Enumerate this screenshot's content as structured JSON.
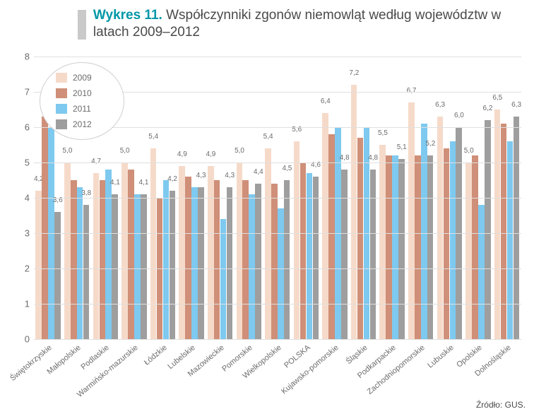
{
  "title_prefix": "Wykres 11.",
  "title_rest": " Współczynniki zgonów niemowląt według województw w latach 2009–2012",
  "title_prefix_color": "#0097a7",
  "source_text": "Źródło: GUS.",
  "chart": {
    "type": "bar",
    "ylim": [
      0,
      8
    ],
    "ytick_step": 1,
    "gridline_color": "#e0e0e0",
    "background_color": "#ffffff",
    "label_fontsize": 10,
    "axis_fontsize": 13,
    "xaxis_fontsize": 11,
    "bar_width_ratio": 0.22,
    "group_gap_ratio": 0.12,
    "series": [
      {
        "name": "2009",
        "color": "#f6dac9"
      },
      {
        "name": "2010",
        "color": "#cf8f78"
      },
      {
        "name": "2011",
        "color": "#7ec9ef"
      },
      {
        "name": "2012",
        "color": "#9e9e9e"
      }
    ],
    "categories": [
      "Świętokrzyskie",
      "Małopolskie",
      "Podlaskie",
      "Warmińsko-mazurskie",
      "Łódzkie",
      "Lubelskie",
      "Mazowieckie",
      "Pomorskie",
      "Wielkopolskie",
      "POLSKA",
      "Kujawsko-pomorskie",
      "Śląskie",
      "Podkarpackie",
      "Zachodniopomorskie",
      "Lubuskie",
      "Opolskie",
      "Dolnośląskie"
    ],
    "values": [
      [
        4.2,
        6.3,
        6.0,
        3.6
      ],
      [
        5.0,
        4.5,
        4.3,
        3.8
      ],
      [
        4.7,
        4.5,
        4.8,
        4.1
      ],
      [
        5.0,
        4.8,
        4.1,
        4.1
      ],
      [
        5.4,
        4.0,
        4.5,
        4.2
      ],
      [
        4.9,
        4.6,
        4.3,
        4.3
      ],
      [
        4.9,
        4.5,
        3.4,
        4.3
      ],
      [
        5.0,
        4.5,
        4.1,
        4.4
      ],
      [
        5.4,
        4.4,
        3.7,
        4.5
      ],
      [
        5.6,
        5.0,
        4.7,
        4.6
      ],
      [
        6.4,
        5.8,
        6.0,
        4.8
      ],
      [
        7.2,
        5.7,
        6.0,
        4.8
      ],
      [
        5.5,
        5.2,
        5.2,
        5.1
      ],
      [
        6.7,
        5.2,
        6.1,
        5.2
      ],
      [
        6.3,
        5.4,
        5.6,
        6.0
      ],
      [
        5.0,
        5.2,
        3.8,
        6.2
      ],
      [
        6.5,
        6.1,
        5.6,
        6.3
      ]
    ],
    "value_labels": [
      [
        "4,2",
        null,
        null,
        "3,6"
      ],
      [
        "5,0",
        null,
        null,
        "3,8"
      ],
      [
        "4,7",
        null,
        null,
        "4,1"
      ],
      [
        "5,0",
        null,
        null,
        "4,1"
      ],
      [
        "5,4",
        null,
        null,
        "4,2"
      ],
      [
        "4,9",
        null,
        null,
        "4,3"
      ],
      [
        "4,9",
        null,
        null,
        "4,3"
      ],
      [
        "5,0",
        null,
        null,
        "4,4"
      ],
      [
        "5,4",
        null,
        null,
        "4,5"
      ],
      [
        "5,6",
        null,
        null,
        "4,6"
      ],
      [
        "6,4",
        null,
        null,
        "4,8"
      ],
      [
        "7,2",
        null,
        null,
        "4,8"
      ],
      [
        "5,5",
        null,
        null,
        "5,1"
      ],
      [
        "6,7",
        null,
        null,
        "5,2"
      ],
      [
        "6,3",
        null,
        null,
        "6,0"
      ],
      [
        "5,0",
        null,
        null,
        "6,2"
      ],
      [
        "6,5",
        null,
        null,
        "6,3"
      ]
    ]
  }
}
